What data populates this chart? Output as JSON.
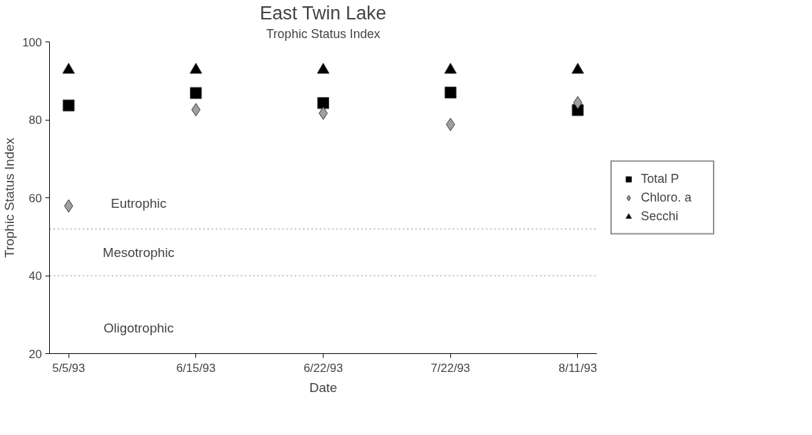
{
  "chart_data": {
    "type": "scatter",
    "title": "East Twin Lake",
    "subtitle": "Trophic Status Index",
    "xlabel": "Date",
    "ylabel": "Trophic Status Index",
    "categories": [
      "5/5/93",
      "6/15/93",
      "6/22/93",
      "7/22/93",
      "8/11/93"
    ],
    "series": [
      {
        "name": "Total P",
        "color": "#000000",
        "marker": "square",
        "values": [
          83.7,
          86.9,
          84.3,
          87.0,
          82.5
        ]
      },
      {
        "name": "Chloro. a",
        "color": "#a0a0a0",
        "marker": "diamond",
        "values": [
          57.9,
          82.6,
          81.7,
          78.8,
          84.4
        ]
      },
      {
        "name": "Secchi",
        "color": "#000000",
        "marker": "triangle",
        "values": [
          92.8,
          92.8,
          92.8,
          92.8,
          92.8
        ]
      }
    ],
    "ylim": [
      20,
      100
    ],
    "yticks": [
      20,
      40,
      60,
      80,
      100
    ],
    "ref_lines": [
      {
        "axis": "y",
        "value": 52,
        "color": "#808080",
        "line_style": "dotted"
      },
      {
        "axis": "y",
        "value": 40,
        "color": "#808080",
        "line_style": "dotted"
      }
    ],
    "annotations": [
      "Eutrophic",
      "Mesotrophic",
      "Oligotrophic"
    ],
    "grid": false,
    "legend": "right"
  }
}
